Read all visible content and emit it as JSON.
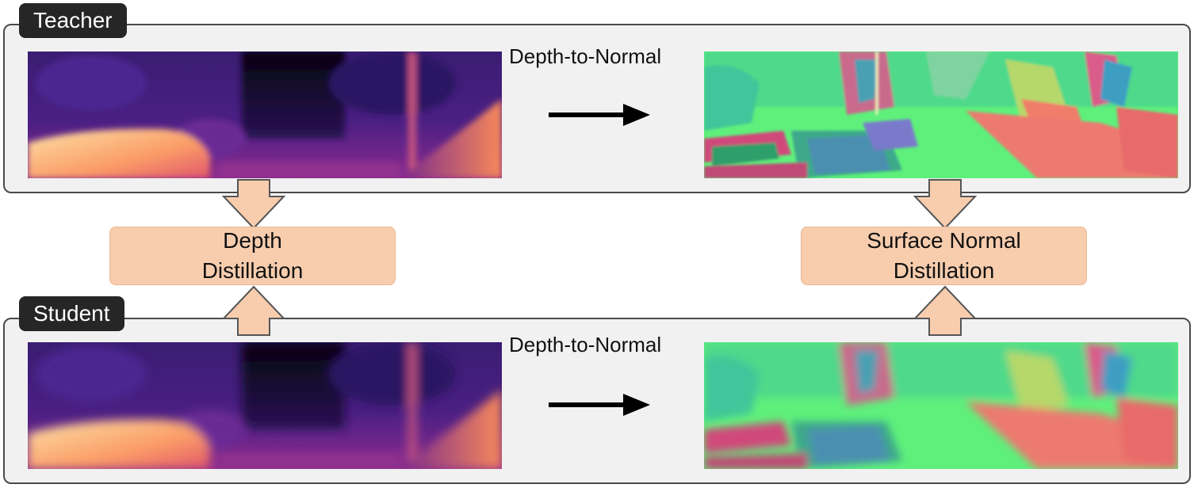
{
  "teacher": {
    "tag": "Teacher",
    "conversion_label": "Depth-to-Normal"
  },
  "student": {
    "tag": "Student",
    "conversion_label": "Depth-to-Normal"
  },
  "depth_distillation": {
    "line1": "Depth",
    "line2": "Distillation"
  },
  "normal_distillation": {
    "line1": "Surface Normal",
    "line2": "Distillation"
  },
  "colors": {
    "panel_bg": "#f1f1f1",
    "panel_border": "#4a4a4a",
    "tag_bg": "#262626",
    "distill_box": "#f8cdae",
    "block_arrow_fill": "#f8cdae",
    "block_arrow_stroke": "#555555"
  }
}
